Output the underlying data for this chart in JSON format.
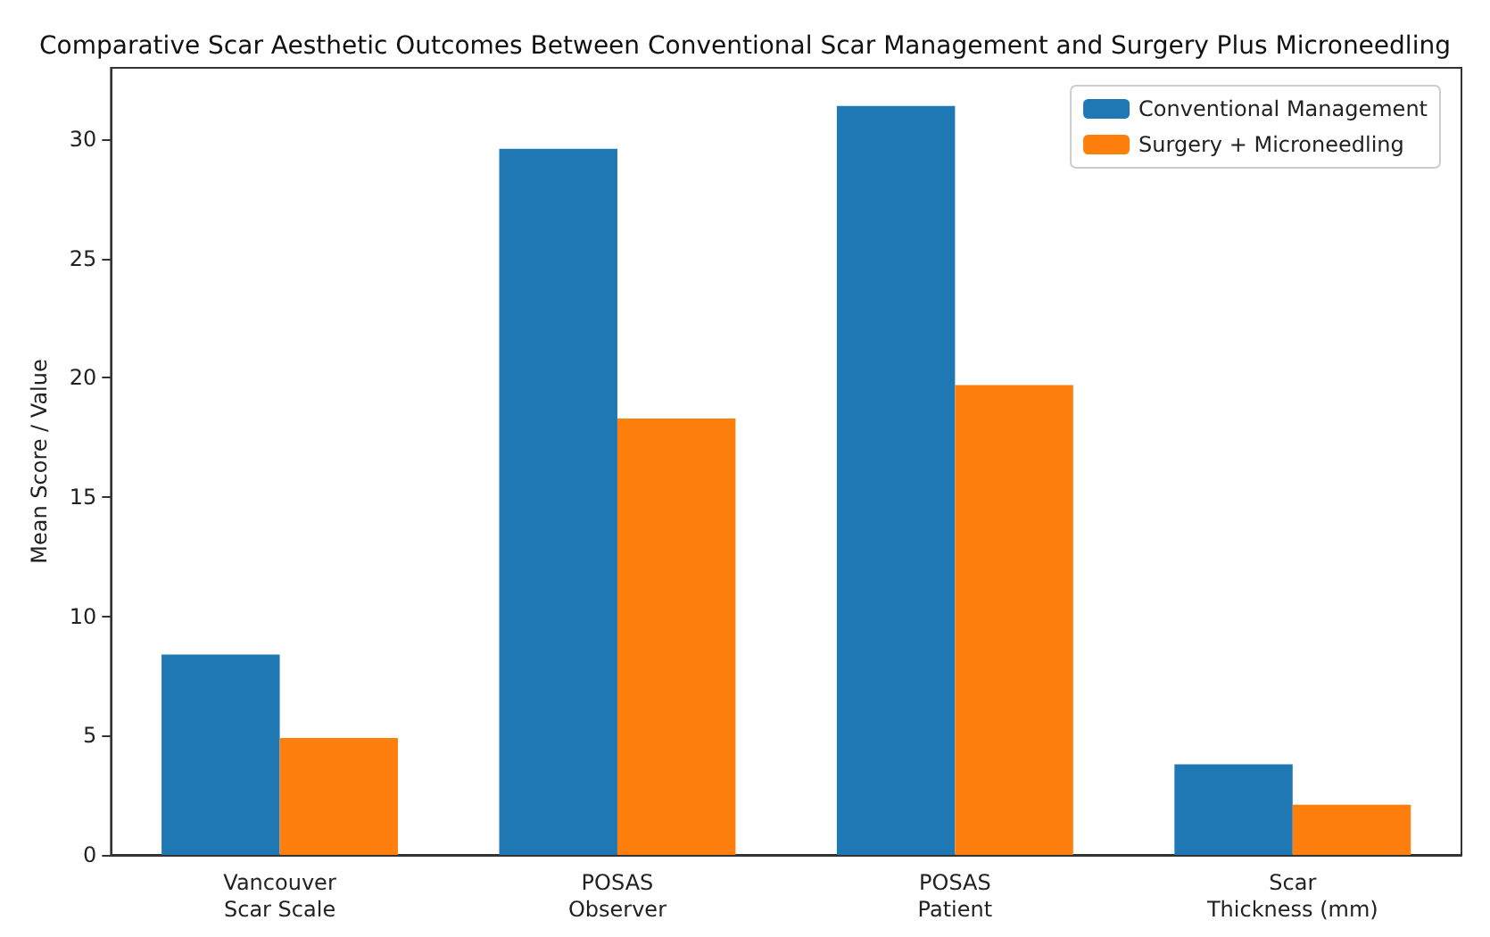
{
  "chart_data": {
    "type": "bar",
    "title": "Comparative Scar Aesthetic Outcomes Between Conventional Scar Management and Surgery Plus Microneedling",
    "ylabel": "Mean Score / Value",
    "categories": [
      "Vancouver\nScar Scale",
      "POSAS\nObserver",
      "POSAS\nPatient",
      "Scar\nThickness (mm)"
    ],
    "series": [
      {
        "name": "Conventional Management",
        "color": "#1f77b4",
        "values": [
          8.4,
          29.6,
          31.4,
          3.8
        ]
      },
      {
        "name": "Surgery + Microneedling",
        "color": "#ff7f0e",
        "values": [
          4.9,
          18.3,
          19.7,
          2.1
        ]
      }
    ],
    "ylim": [
      0,
      33
    ],
    "yticks": [
      0,
      5,
      10,
      15,
      20,
      25,
      30
    ],
    "grid": false,
    "legend": "top right"
  }
}
